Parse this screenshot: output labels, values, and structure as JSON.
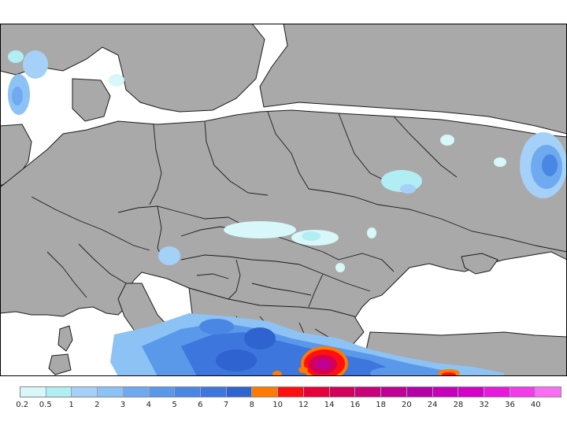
{
  "map": {
    "land_color": "#a9a9a9",
    "sea_color": "#ffffff",
    "border_color": "#1a1a1a"
  },
  "legend": {
    "labels": [
      "0.2",
      "0.5",
      "1",
      "2",
      "3",
      "4",
      "5",
      "6",
      "7",
      "8",
      "10",
      "12",
      "14",
      "16",
      "18",
      "20",
      "24",
      "28",
      "32",
      "36",
      "40"
    ],
    "colors": [
      "#d7f7f9",
      "#b0eef4",
      "#a5d0f7",
      "#8dc2f5",
      "#6faaf0",
      "#5a98ea",
      "#4a86e4",
      "#3d76dc",
      "#2f63d0",
      "#ff7a00",
      "#ff1010",
      "#e8003a",
      "#d2005a",
      "#c8007a",
      "#bf0096",
      "#b400a8",
      "#c600ba",
      "#d500c8",
      "#e619dc",
      "#f23ce9",
      "#fb6df5"
    ]
  }
}
